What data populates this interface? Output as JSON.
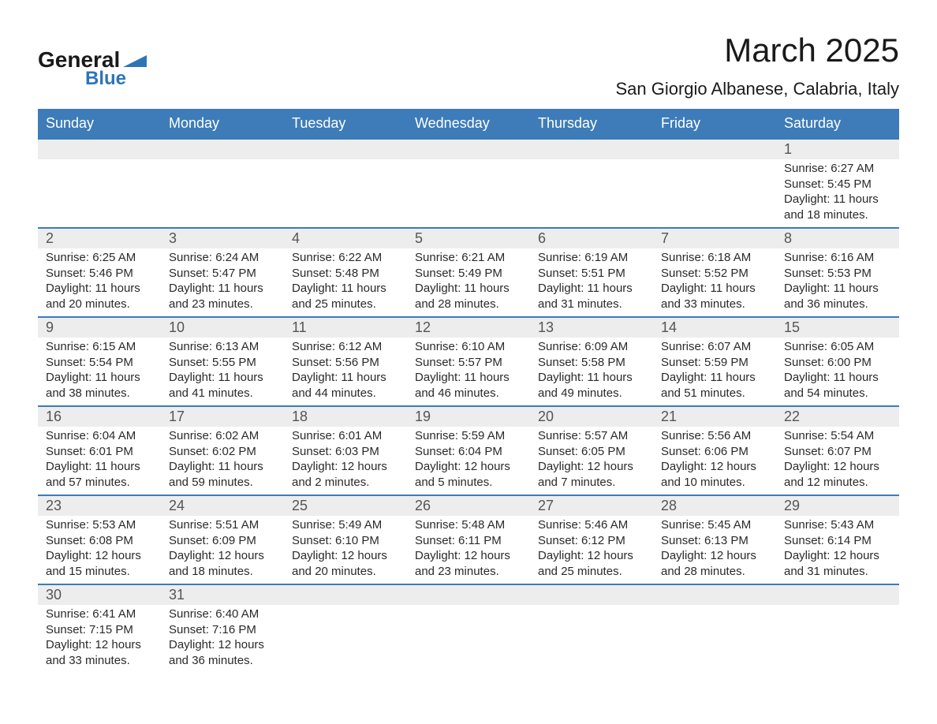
{
  "logo": {
    "general": "General",
    "blue": "Blue"
  },
  "title": "March 2025",
  "location": "San Giorgio Albanese, Calabria, Italy",
  "colors": {
    "header_bg": "#3d7cb8",
    "header_text": "#ffffff",
    "daynum_bg": "#ededed",
    "row_border": "#3d7cb8",
    "body_text": "#2a2a2a",
    "logo_blue": "#2e75b6"
  },
  "day_headers": [
    "Sunday",
    "Monday",
    "Tuesday",
    "Wednesday",
    "Thursday",
    "Friday",
    "Saturday"
  ],
  "weeks": [
    [
      null,
      null,
      null,
      null,
      null,
      null,
      {
        "n": "1",
        "sr": "Sunrise: 6:27 AM",
        "ss": "Sunset: 5:45 PM",
        "dl1": "Daylight: 11 hours",
        "dl2": "and 18 minutes."
      }
    ],
    [
      {
        "n": "2",
        "sr": "Sunrise: 6:25 AM",
        "ss": "Sunset: 5:46 PM",
        "dl1": "Daylight: 11 hours",
        "dl2": "and 20 minutes."
      },
      {
        "n": "3",
        "sr": "Sunrise: 6:24 AM",
        "ss": "Sunset: 5:47 PM",
        "dl1": "Daylight: 11 hours",
        "dl2": "and 23 minutes."
      },
      {
        "n": "4",
        "sr": "Sunrise: 6:22 AM",
        "ss": "Sunset: 5:48 PM",
        "dl1": "Daylight: 11 hours",
        "dl2": "and 25 minutes."
      },
      {
        "n": "5",
        "sr": "Sunrise: 6:21 AM",
        "ss": "Sunset: 5:49 PM",
        "dl1": "Daylight: 11 hours",
        "dl2": "and 28 minutes."
      },
      {
        "n": "6",
        "sr": "Sunrise: 6:19 AM",
        "ss": "Sunset: 5:51 PM",
        "dl1": "Daylight: 11 hours",
        "dl2": "and 31 minutes."
      },
      {
        "n": "7",
        "sr": "Sunrise: 6:18 AM",
        "ss": "Sunset: 5:52 PM",
        "dl1": "Daylight: 11 hours",
        "dl2": "and 33 minutes."
      },
      {
        "n": "8",
        "sr": "Sunrise: 6:16 AM",
        "ss": "Sunset: 5:53 PM",
        "dl1": "Daylight: 11 hours",
        "dl2": "and 36 minutes."
      }
    ],
    [
      {
        "n": "9",
        "sr": "Sunrise: 6:15 AM",
        "ss": "Sunset: 5:54 PM",
        "dl1": "Daylight: 11 hours",
        "dl2": "and 38 minutes."
      },
      {
        "n": "10",
        "sr": "Sunrise: 6:13 AM",
        "ss": "Sunset: 5:55 PM",
        "dl1": "Daylight: 11 hours",
        "dl2": "and 41 minutes."
      },
      {
        "n": "11",
        "sr": "Sunrise: 6:12 AM",
        "ss": "Sunset: 5:56 PM",
        "dl1": "Daylight: 11 hours",
        "dl2": "and 44 minutes."
      },
      {
        "n": "12",
        "sr": "Sunrise: 6:10 AM",
        "ss": "Sunset: 5:57 PM",
        "dl1": "Daylight: 11 hours",
        "dl2": "and 46 minutes."
      },
      {
        "n": "13",
        "sr": "Sunrise: 6:09 AM",
        "ss": "Sunset: 5:58 PM",
        "dl1": "Daylight: 11 hours",
        "dl2": "and 49 minutes."
      },
      {
        "n": "14",
        "sr": "Sunrise: 6:07 AM",
        "ss": "Sunset: 5:59 PM",
        "dl1": "Daylight: 11 hours",
        "dl2": "and 51 minutes."
      },
      {
        "n": "15",
        "sr": "Sunrise: 6:05 AM",
        "ss": "Sunset: 6:00 PM",
        "dl1": "Daylight: 11 hours",
        "dl2": "and 54 minutes."
      }
    ],
    [
      {
        "n": "16",
        "sr": "Sunrise: 6:04 AM",
        "ss": "Sunset: 6:01 PM",
        "dl1": "Daylight: 11 hours",
        "dl2": "and 57 minutes."
      },
      {
        "n": "17",
        "sr": "Sunrise: 6:02 AM",
        "ss": "Sunset: 6:02 PM",
        "dl1": "Daylight: 11 hours",
        "dl2": "and 59 minutes."
      },
      {
        "n": "18",
        "sr": "Sunrise: 6:01 AM",
        "ss": "Sunset: 6:03 PM",
        "dl1": "Daylight: 12 hours",
        "dl2": "and 2 minutes."
      },
      {
        "n": "19",
        "sr": "Sunrise: 5:59 AM",
        "ss": "Sunset: 6:04 PM",
        "dl1": "Daylight: 12 hours",
        "dl2": "and 5 minutes."
      },
      {
        "n": "20",
        "sr": "Sunrise: 5:57 AM",
        "ss": "Sunset: 6:05 PM",
        "dl1": "Daylight: 12 hours",
        "dl2": "and 7 minutes."
      },
      {
        "n": "21",
        "sr": "Sunrise: 5:56 AM",
        "ss": "Sunset: 6:06 PM",
        "dl1": "Daylight: 12 hours",
        "dl2": "and 10 minutes."
      },
      {
        "n": "22",
        "sr": "Sunrise: 5:54 AM",
        "ss": "Sunset: 6:07 PM",
        "dl1": "Daylight: 12 hours",
        "dl2": "and 12 minutes."
      }
    ],
    [
      {
        "n": "23",
        "sr": "Sunrise: 5:53 AM",
        "ss": "Sunset: 6:08 PM",
        "dl1": "Daylight: 12 hours",
        "dl2": "and 15 minutes."
      },
      {
        "n": "24",
        "sr": "Sunrise: 5:51 AM",
        "ss": "Sunset: 6:09 PM",
        "dl1": "Daylight: 12 hours",
        "dl2": "and 18 minutes."
      },
      {
        "n": "25",
        "sr": "Sunrise: 5:49 AM",
        "ss": "Sunset: 6:10 PM",
        "dl1": "Daylight: 12 hours",
        "dl2": "and 20 minutes."
      },
      {
        "n": "26",
        "sr": "Sunrise: 5:48 AM",
        "ss": "Sunset: 6:11 PM",
        "dl1": "Daylight: 12 hours",
        "dl2": "and 23 minutes."
      },
      {
        "n": "27",
        "sr": "Sunrise: 5:46 AM",
        "ss": "Sunset: 6:12 PM",
        "dl1": "Daylight: 12 hours",
        "dl2": "and 25 minutes."
      },
      {
        "n": "28",
        "sr": "Sunrise: 5:45 AM",
        "ss": "Sunset: 6:13 PM",
        "dl1": "Daylight: 12 hours",
        "dl2": "and 28 minutes."
      },
      {
        "n": "29",
        "sr": "Sunrise: 5:43 AM",
        "ss": "Sunset: 6:14 PM",
        "dl1": "Daylight: 12 hours",
        "dl2": "and 31 minutes."
      }
    ],
    [
      {
        "n": "30",
        "sr": "Sunrise: 6:41 AM",
        "ss": "Sunset: 7:15 PM",
        "dl1": "Daylight: 12 hours",
        "dl2": "and 33 minutes."
      },
      {
        "n": "31",
        "sr": "Sunrise: 6:40 AM",
        "ss": "Sunset: 7:16 PM",
        "dl1": "Daylight: 12 hours",
        "dl2": "and 36 minutes."
      },
      null,
      null,
      null,
      null,
      null
    ]
  ]
}
